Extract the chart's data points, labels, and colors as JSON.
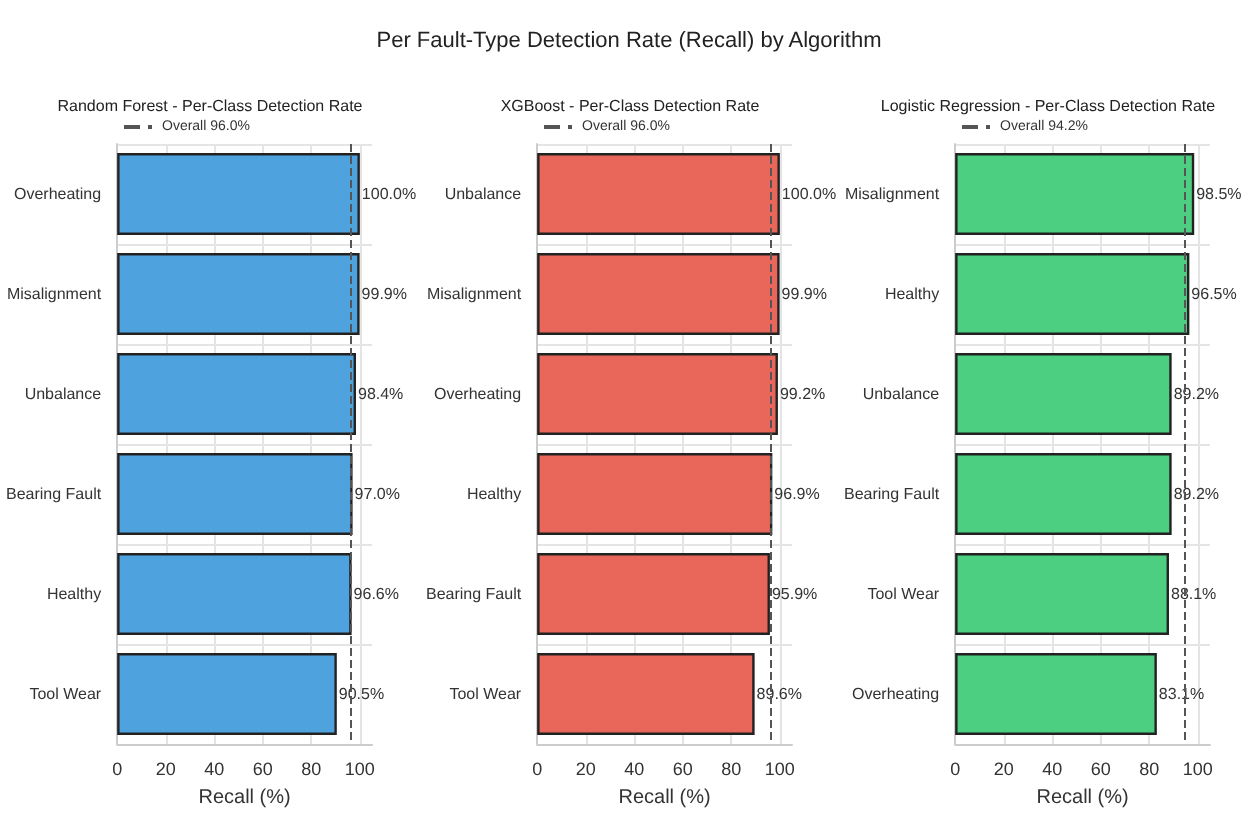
{
  "chart_data": [
    {
      "type": "other",
      "title": "Per Fault-Type Detection Rate (Recall) by Algorithm"
    },
    {
      "type": "bar",
      "orientation": "horizontal",
      "title": "Random Forest - Per-Class Detection Rate",
      "xlabel": "Recall (%)",
      "categories": [
        "Overheating",
        "Misalignment",
        "Unbalance",
        "Bearing Fault",
        "Healthy",
        "Tool Wear"
      ],
      "series": [
        {
          "color": "#4ea3df",
          "values": [
            100.0,
            99.9,
            98.4,
            97.0,
            96.6,
            90.5
          ],
          "value_labels": [
            "100.0%",
            "99.9%",
            "98.4%",
            "97.0%",
            "96.6%",
            "90.5%"
          ]
        }
      ],
      "xlim": [
        0,
        105
      ],
      "xticks": [
        0,
        20,
        40,
        60,
        80,
        100
      ],
      "grid": true,
      "legend": "top left",
      "ref_lines": [
        {
          "axis": "x",
          "value": 96.0,
          "label": "Overall 96.0%",
          "color": "#555555",
          "line_style": "dashed"
        }
      ]
    },
    {
      "type": "bar",
      "orientation": "horizontal",
      "title": "XGBoost - Per-Class Detection Rate",
      "xlabel": "Recall (%)",
      "categories": [
        "Unbalance",
        "Misalignment",
        "Overheating",
        "Healthy",
        "Bearing Fault",
        "Tool Wear"
      ],
      "series": [
        {
          "color": "#e8675a",
          "values": [
            100.0,
            99.9,
            99.2,
            96.9,
            95.9,
            89.6
          ],
          "value_labels": [
            "100.0%",
            "99.9%",
            "99.2%",
            "96.9%",
            "95.9%",
            "89.6%"
          ]
        }
      ],
      "xlim": [
        0,
        105
      ],
      "xticks": [
        0,
        20,
        40,
        60,
        80,
        100
      ],
      "grid": true,
      "legend": "top left",
      "ref_lines": [
        {
          "axis": "x",
          "value": 96.0,
          "label": "Overall 96.0%",
          "color": "#555555",
          "line_style": "dashed"
        }
      ]
    },
    {
      "type": "bar",
      "orientation": "horizontal",
      "title": "Logistic Regression - Per-Class Detection Rate",
      "xlabel": "Recall (%)",
      "categories": [
        "Misalignment",
        "Healthy",
        "Unbalance",
        "Bearing Fault",
        "Tool Wear",
        "Overheating"
      ],
      "series": [
        {
          "color": "#4ccf80",
          "values": [
            98.5,
            96.5,
            89.2,
            89.2,
            88.1,
            83.1
          ],
          "value_labels": [
            "98.5%",
            "96.5%",
            "89.2%",
            "89.2%",
            "88.1%",
            "83.1%"
          ]
        }
      ],
      "xlim": [
        0,
        105
      ],
      "xticks": [
        0,
        20,
        40,
        60,
        80,
        100
      ],
      "grid": true,
      "legend": "top left",
      "ref_lines": [
        {
          "axis": "x",
          "value": 94.2,
          "label": "Overall 94.2%",
          "color": "#555555",
          "line_style": "dashed"
        }
      ]
    }
  ]
}
